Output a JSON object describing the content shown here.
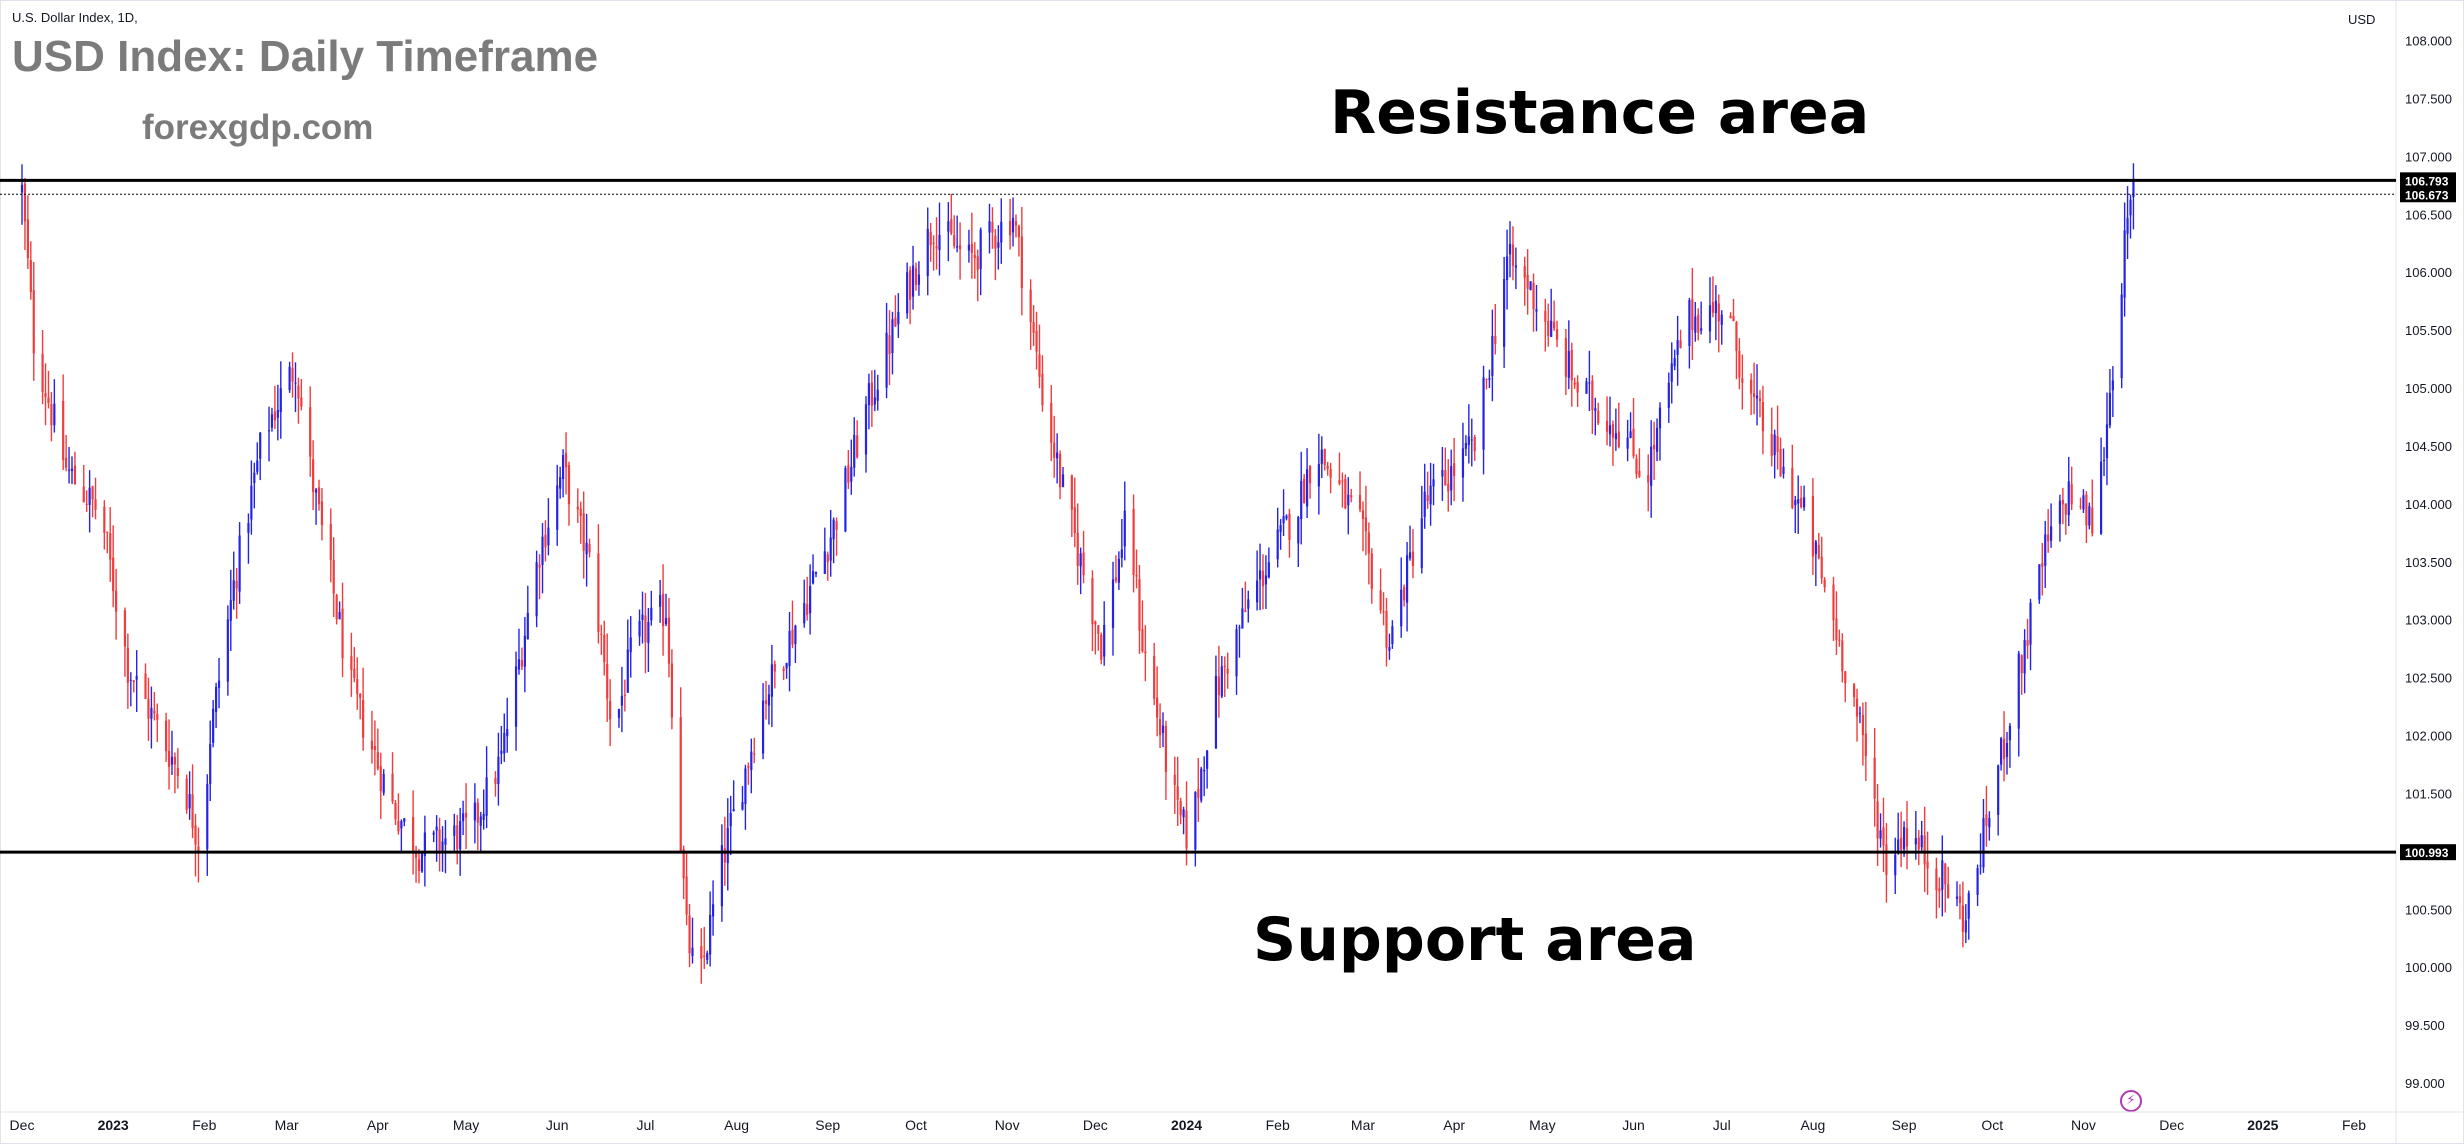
{
  "header": {
    "symbol": "U.S. Dollar Index, 1D,",
    "title": "USD Index: Daily Timeframe",
    "site": "forexgdp.com",
    "currency": "USD"
  },
  "annotations": {
    "resistance": "Resistance area",
    "support": "Support area"
  },
  "icons": {
    "flash": "lightning-icon"
  },
  "colors": {
    "up": "#2424e6",
    "down": "#f03c3c",
    "line": "#000000",
    "axis_text": "#131722"
  },
  "chart_data": {
    "type": "candlestick",
    "title": "USD Index: Daily Timeframe",
    "ylim": [
      98.75,
      108.35
    ],
    "y_ticks": [
      "99.000",
      "99.500",
      "100.000",
      "100.500",
      "101.000",
      "101.500",
      "102.000",
      "102.500",
      "103.000",
      "103.500",
      "104.000",
      "104.500",
      "105.000",
      "105.500",
      "106.000",
      "106.500",
      "107.000",
      "107.500",
      "108.000"
    ],
    "x_labels": [
      {
        "label": "Dec",
        "day": 0
      },
      {
        "label": "2023",
        "day": 31
      },
      {
        "label": "Feb",
        "day": 62
      },
      {
        "label": "Mar",
        "day": 90
      },
      {
        "label": "Apr",
        "day": 121
      },
      {
        "label": "May",
        "day": 151
      },
      {
        "label": "Jun",
        "day": 182
      },
      {
        "label": "Jul",
        "day": 212
      },
      {
        "label": "Aug",
        "day": 243
      },
      {
        "label": "Sep",
        "day": 274
      },
      {
        "label": "Oct",
        "day": 304
      },
      {
        "label": "Nov",
        "day": 335
      },
      {
        "label": "Dec",
        "day": 365
      },
      {
        "label": "2024",
        "day": 396
      },
      {
        "label": "Feb",
        "day": 427
      },
      {
        "label": "Mar",
        "day": 456
      },
      {
        "label": "Apr",
        "day": 487
      },
      {
        "label": "May",
        "day": 517
      },
      {
        "label": "Jun",
        "day": 548
      },
      {
        "label": "Jul",
        "day": 578
      },
      {
        "label": "Aug",
        "day": 609
      },
      {
        "label": "Sep",
        "day": 640
      },
      {
        "label": "Oct",
        "day": 670
      },
      {
        "label": "Nov",
        "day": 701
      },
      {
        "label": "Dec",
        "day": 731
      },
      {
        "label": "2025",
        "day": 762
      },
      {
        "label": "Feb",
        "day": 793
      }
    ],
    "horizontal_levels": [
      {
        "value": 106.793,
        "label": "106.793",
        "style": "solid"
      },
      {
        "value": 100.993,
        "label": "100.993",
        "style": "solid"
      },
      {
        "value": 106.673,
        "label": "106.673",
        "style": "dotted"
      }
    ],
    "trend_anchors": [
      {
        "day": 0,
        "close": 106.7
      },
      {
        "day": 4,
        "close": 105.4
      },
      {
        "day": 15,
        "close": 104.3
      },
      {
        "day": 27,
        "close": 103.9
      },
      {
        "day": 36,
        "close": 102.6
      },
      {
        "day": 55,
        "close": 101.6
      },
      {
        "day": 61,
        "close": 101.0
      },
      {
        "day": 64,
        "close": 102.0
      },
      {
        "day": 72,
        "close": 103.3
      },
      {
        "day": 82,
        "close": 104.6
      },
      {
        "day": 93,
        "close": 105.2
      },
      {
        "day": 98,
        "close": 104.3
      },
      {
        "day": 112,
        "close": 102.4
      },
      {
        "day": 126,
        "close": 101.4
      },
      {
        "day": 135,
        "close": 101.0
      },
      {
        "day": 153,
        "close": 101.2
      },
      {
        "day": 163,
        "close": 101.8
      },
      {
        "day": 176,
        "close": 103.6
      },
      {
        "day": 184,
        "close": 104.3
      },
      {
        "day": 194,
        "close": 103.4
      },
      {
        "day": 201,
        "close": 102.0
      },
      {
        "day": 208,
        "close": 102.8
      },
      {
        "day": 219,
        "close": 103.1
      },
      {
        "day": 226,
        "close": 100.3
      },
      {
        "day": 230,
        "close": 99.8
      },
      {
        "day": 238,
        "close": 100.9
      },
      {
        "day": 252,
        "close": 102.3
      },
      {
        "day": 267,
        "close": 103.2
      },
      {
        "day": 276,
        "close": 103.8
      },
      {
        "day": 287,
        "close": 104.8
      },
      {
        "day": 303,
        "close": 106.0
      },
      {
        "day": 310,
        "close": 106.4
      },
      {
        "day": 322,
        "close": 106.1
      },
      {
        "day": 337,
        "close": 106.5
      },
      {
        "day": 348,
        "close": 104.8
      },
      {
        "day": 355,
        "close": 104.0
      },
      {
        "day": 367,
        "close": 102.8
      },
      {
        "day": 376,
        "close": 103.9
      },
      {
        "day": 381,
        "close": 102.8
      },
      {
        "day": 393,
        "close": 101.3
      },
      {
        "day": 397,
        "close": 101.1
      },
      {
        "day": 405,
        "close": 102.3
      },
      {
        "day": 418,
        "close": 103.2
      },
      {
        "day": 434,
        "close": 104.0
      },
      {
        "day": 440,
        "close": 104.5
      },
      {
        "day": 455,
        "close": 103.8
      },
      {
        "day": 465,
        "close": 102.8
      },
      {
        "day": 477,
        "close": 104.0
      },
      {
        "day": 494,
        "close": 104.5
      },
      {
        "day": 505,
        "close": 106.1
      },
      {
        "day": 512,
        "close": 105.9
      },
      {
        "day": 529,
        "close": 105.0
      },
      {
        "day": 545,
        "close": 104.6
      },
      {
        "day": 552,
        "close": 104.2
      },
      {
        "day": 566,
        "close": 105.6
      },
      {
        "day": 579,
        "close": 105.7
      },
      {
        "day": 588,
        "close": 104.9
      },
      {
        "day": 600,
        "close": 104.2
      },
      {
        "day": 606,
        "close": 103.9
      },
      {
        "day": 616,
        "close": 103.0
      },
      {
        "day": 623,
        "close": 102.3
      },
      {
        "day": 634,
        "close": 100.9
      },
      {
        "day": 640,
        "close": 101.2
      },
      {
        "day": 652,
        "close": 100.8
      },
      {
        "day": 661,
        "close": 100.4
      },
      {
        "day": 671,
        "close": 101.6
      },
      {
        "day": 677,
        "close": 102.3
      },
      {
        "day": 688,
        "close": 103.6
      },
      {
        "day": 696,
        "close": 104.1
      },
      {
        "day": 705,
        "close": 103.8
      },
      {
        "day": 711,
        "close": 105.2
      },
      {
        "day": 715,
        "close": 106.2
      },
      {
        "day": 718,
        "close": 106.7
      }
    ]
  }
}
